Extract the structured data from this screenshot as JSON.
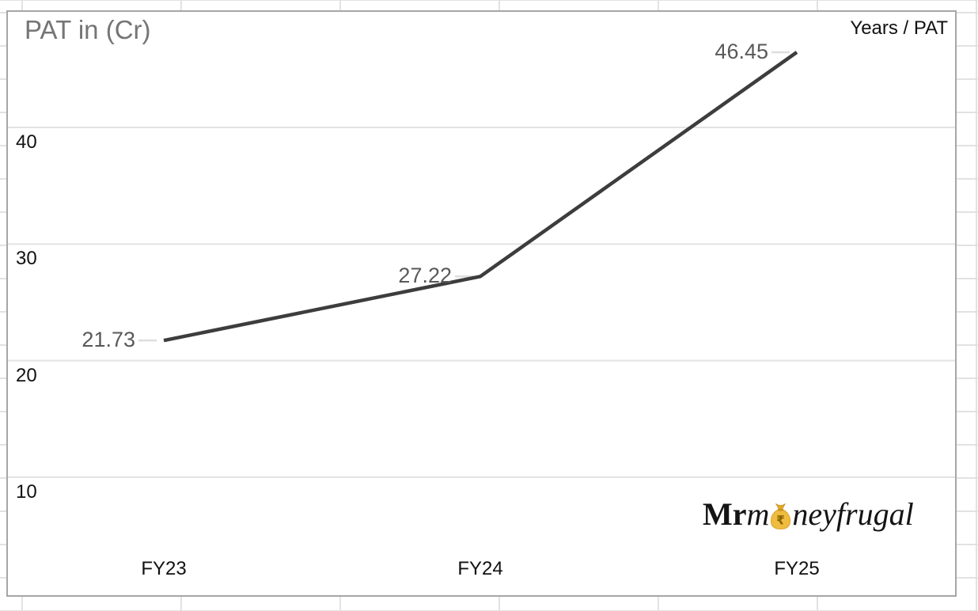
{
  "chart_data": {
    "type": "line",
    "title": "PAT in (Cr)",
    "legend_label": "Years / PAT",
    "legend_position": "top-right",
    "categories": [
      "FY23",
      "FY24",
      "FY25"
    ],
    "series": [
      {
        "name": "PAT",
        "values": [
          21.73,
          27.22,
          46.45
        ]
      }
    ],
    "data_labels": [
      "21.73",
      "27.22",
      "46.45"
    ],
    "y_ticks": [
      10,
      20,
      30,
      40
    ],
    "ylim": [
      0,
      50
    ],
    "grid": true,
    "colors": {
      "series_line": "#3d3d3d",
      "data_label": "#595959",
      "leader_line": "#dedede",
      "plot_gridline": "#e3e3e3",
      "axis_text": "#111111",
      "title_text": "#757575",
      "card_border": "#a6a6a6",
      "sheet_gridline": "#e2e2e2",
      "logo_text": "#141414",
      "money_bag_gold": "#eebc3f"
    }
  },
  "watermark": {
    "part_bold": "Mr",
    "part_italic_pre": "m",
    "currency_symbol": "₹",
    "part_italic_post": "neyfrugal"
  }
}
